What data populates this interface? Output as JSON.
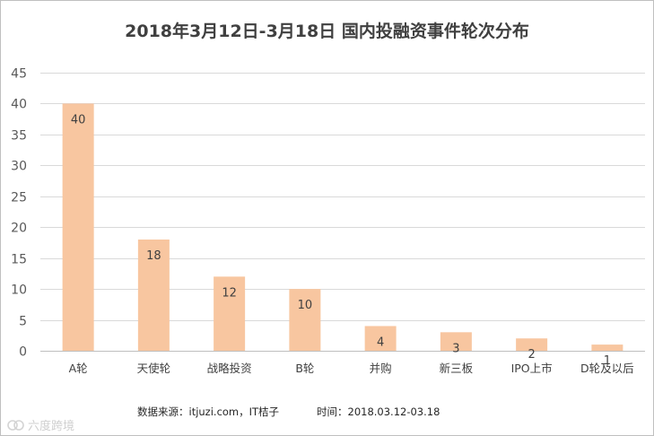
{
  "chart_data": {
    "type": "bar",
    "title": "2018年3月12日-3月18日  国内投融资事件轮次分布",
    "categories": [
      "A轮",
      "天使轮",
      "战略投资",
      "B轮",
      "并购",
      "新三板",
      "IPO上市",
      "D轮及以后"
    ],
    "values": [
      40,
      18,
      12,
      10,
      4,
      3,
      2,
      1
    ],
    "xlabel": "",
    "ylabel": "",
    "ylim": [
      0,
      45
    ],
    "yticks": [
      0,
      5,
      10,
      15,
      20,
      25,
      30,
      35,
      40,
      45
    ],
    "grid": true,
    "bar_color": "#f8c6a0",
    "data_labels": true
  },
  "footer": {
    "source": "数据来源：itjuzi.com，IT桔子",
    "time": "时间：2018.03.12-03.18"
  },
  "watermark": {
    "text": "六度跨境",
    "icon": "brand-logo-icon"
  },
  "colors": {
    "grid": "#d9d9d9",
    "axis": "#bfbfbf",
    "text": "#404040"
  }
}
